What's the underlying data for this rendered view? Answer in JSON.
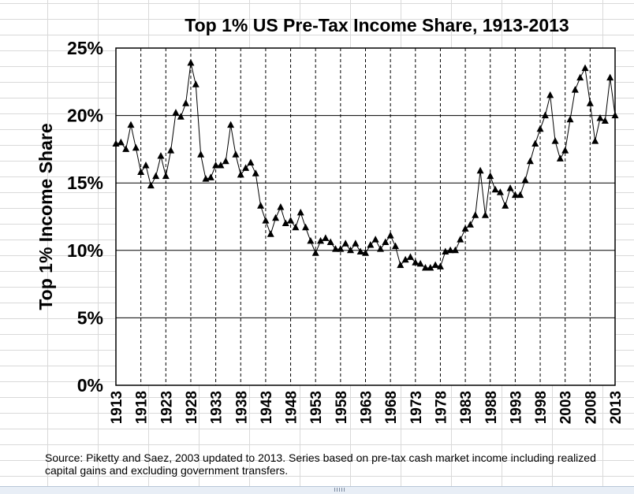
{
  "chart_data": {
    "type": "line",
    "title": "Top 1% US Pre-Tax Income Share, 1913-2013",
    "xlabel": "",
    "ylabel": "Top 1% Income Share",
    "ylim": [
      0,
      25
    ],
    "yticks": [
      "0%",
      "5%",
      "10%",
      "15%",
      "20%",
      "25%"
    ],
    "xtick_labels": [
      "1913",
      "1918",
      "1923",
      "1928",
      "1933",
      "1938",
      "1943",
      "1948",
      "1953",
      "1958",
      "1963",
      "1968",
      "1973",
      "1978",
      "1983",
      "1988",
      "1993",
      "1998",
      "2003",
      "2008",
      "2013"
    ],
    "marker": "triangle",
    "series": [
      {
        "name": "Top 1% Income Share",
        "x": [
          1913,
          1914,
          1915,
          1916,
          1917,
          1918,
          1919,
          1920,
          1921,
          1922,
          1923,
          1924,
          1925,
          1926,
          1927,
          1928,
          1929,
          1930,
          1931,
          1932,
          1933,
          1934,
          1935,
          1936,
          1937,
          1938,
          1939,
          1940,
          1941,
          1942,
          1943,
          1944,
          1945,
          1946,
          1947,
          1948,
          1949,
          1950,
          1951,
          1952,
          1953,
          1954,
          1955,
          1956,
          1957,
          1958,
          1959,
          1960,
          1961,
          1962,
          1963,
          1964,
          1965,
          1966,
          1967,
          1968,
          1969,
          1970,
          1971,
          1972,
          1973,
          1974,
          1975,
          1976,
          1977,
          1978,
          1979,
          1980,
          1981,
          1982,
          1983,
          1984,
          1985,
          1986,
          1987,
          1988,
          1989,
          1990,
          1991,
          1992,
          1993,
          1994,
          1995,
          1996,
          1997,
          1998,
          1999,
          2000,
          2001,
          2002,
          2003,
          2004,
          2005,
          2006,
          2007,
          2008,
          2009,
          2010,
          2011,
          2012,
          2013
        ],
        "values": [
          17.9,
          18.0,
          17.5,
          19.3,
          17.6,
          15.8,
          16.3,
          14.8,
          15.5,
          17.0,
          15.5,
          17.4,
          20.2,
          19.9,
          20.9,
          23.9,
          22.3,
          17.1,
          15.3,
          15.4,
          16.3,
          16.3,
          16.6,
          19.3,
          17.1,
          15.6,
          16.1,
          16.5,
          15.7,
          13.3,
          12.2,
          11.2,
          12.4,
          13.2,
          12.0,
          12.2,
          11.7,
          12.8,
          11.7,
          10.7,
          9.8,
          10.7,
          10.9,
          10.6,
          10.1,
          10.1,
          10.5,
          10.0,
          10.5,
          9.9,
          9.8,
          10.4,
          10.8,
          10.1,
          10.6,
          11.1,
          10.3,
          8.9,
          9.3,
          9.5,
          9.1,
          9.0,
          8.7,
          8.7,
          8.9,
          8.8,
          9.9,
          10.0,
          10.0,
          10.8,
          11.6,
          11.9,
          12.6,
          15.9,
          12.6,
          15.5,
          14.5,
          14.3,
          13.3,
          14.6,
          14.1,
          14.1,
          15.2,
          16.6,
          17.9,
          19.0,
          20.0,
          21.5,
          18.1,
          16.8,
          17.4,
          19.7,
          21.9,
          22.8,
          23.5,
          20.9,
          18.1,
          19.8,
          19.6,
          22.8,
          20.0
        ]
      }
    ]
  },
  "footnote": "Source: Piketty and Saez, 2003 updated to 2013. Series based on pre-tax cash market income including realized capital gains and excluding government transfers."
}
